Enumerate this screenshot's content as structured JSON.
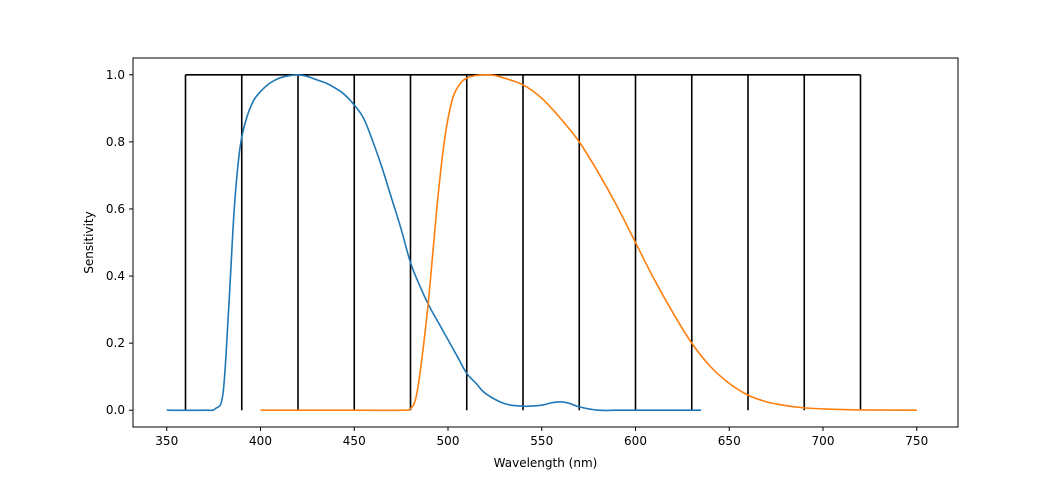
{
  "chart_data": {
    "type": "line",
    "title": "",
    "xlabel": "Wavelength (nm)",
    "ylabel": "Sensitivity",
    "xlim": [
      332,
      772
    ],
    "ylim": [
      -0.05,
      1.05
    ],
    "xticks": [
      350,
      400,
      450,
      500,
      550,
      600,
      650,
      700,
      750
    ],
    "xtick_labels": [
      "350",
      "400",
      "450",
      "500",
      "550",
      "600",
      "650",
      "700",
      "750"
    ],
    "yticks": [
      0.0,
      0.2,
      0.4,
      0.6,
      0.8,
      1.0
    ],
    "ytick_labels": [
      "0.0",
      "0.2",
      "0.4",
      "0.6",
      "0.8",
      "1.0"
    ],
    "grid": false,
    "bins": {
      "color": "#000000",
      "edges": [
        360,
        390,
        420,
        450,
        480,
        510,
        540,
        570,
        600,
        630,
        660,
        690,
        720
      ],
      "height": 1.0
    },
    "series": [
      {
        "color": "#1f77b4",
        "x": [
          350,
          370,
          376,
          380,
          383,
          386,
          389,
          392,
          396,
          400,
          405,
          410,
          415,
          420,
          425,
          430,
          435,
          440,
          445,
          450,
          455,
          460,
          465,
          470,
          475,
          480,
          485,
          490,
          495,
          500,
          505,
          510,
          515,
          520,
          530,
          540,
          550,
          555,
          560,
          565,
          570,
          580,
          590,
          600,
          620,
          635
        ],
        "y": [
          0.0,
          0.0,
          0.005,
          0.05,
          0.3,
          0.6,
          0.78,
          0.86,
          0.92,
          0.95,
          0.975,
          0.99,
          0.997,
          1.0,
          0.995,
          0.985,
          0.975,
          0.96,
          0.94,
          0.91,
          0.87,
          0.8,
          0.72,
          0.63,
          0.54,
          0.44,
          0.37,
          0.31,
          0.26,
          0.21,
          0.16,
          0.11,
          0.08,
          0.05,
          0.02,
          0.012,
          0.015,
          0.022,
          0.025,
          0.02,
          0.01,
          0.0,
          0.0,
          0.0,
          0.0,
          0.0
        ]
      },
      {
        "color": "#ff7f0e",
        "x": [
          400,
          450,
          475,
          480,
          483,
          486,
          490,
          494,
          498,
          502,
          506,
          510,
          515,
          520,
          525,
          530,
          540,
          550,
          560,
          570,
          580,
          590,
          600,
          610,
          620,
          630,
          640,
          650,
          660,
          670,
          680,
          690,
          700,
          720,
          750
        ],
        "y": [
          0.0,
          0.0,
          0.0,
          0.005,
          0.04,
          0.15,
          0.35,
          0.6,
          0.8,
          0.92,
          0.97,
          0.99,
          0.998,
          1.0,
          0.998,
          0.99,
          0.97,
          0.93,
          0.87,
          0.8,
          0.71,
          0.61,
          0.5,
          0.39,
          0.29,
          0.2,
          0.13,
          0.08,
          0.045,
          0.025,
          0.014,
          0.007,
          0.004,
          0.001,
          0.0
        ]
      }
    ]
  }
}
